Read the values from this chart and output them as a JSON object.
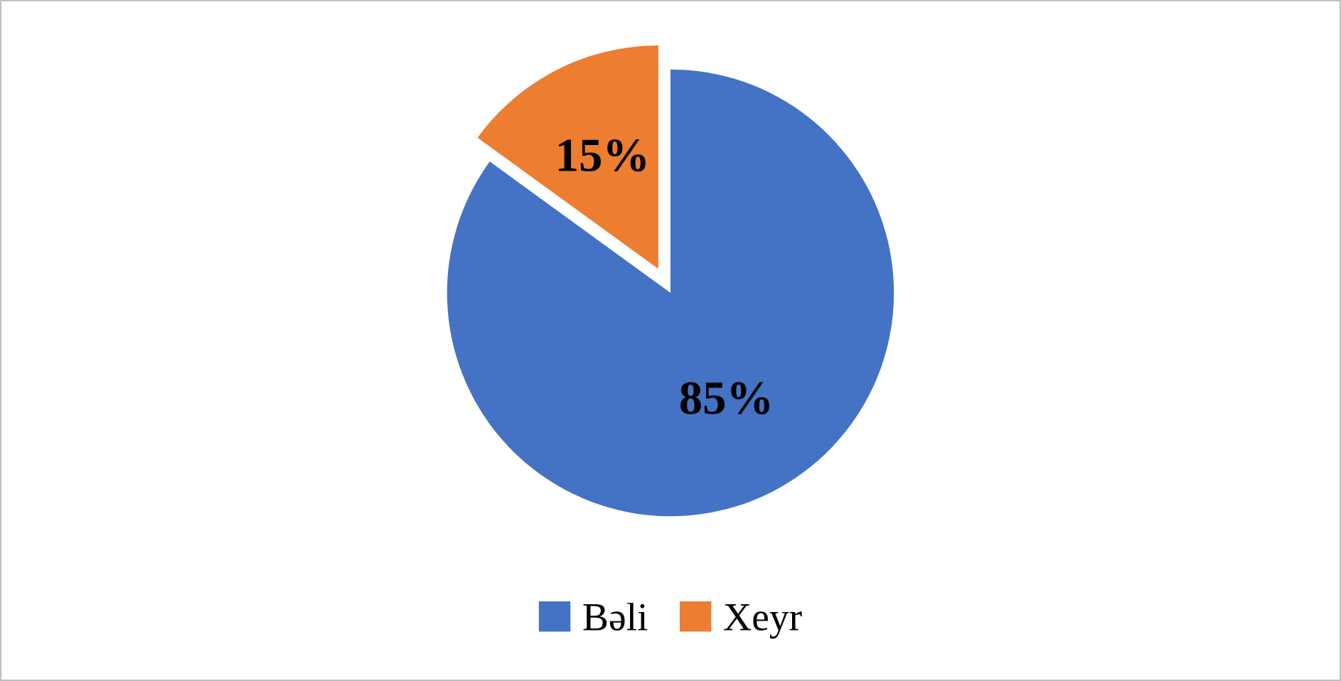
{
  "chart_data": {
    "type": "pie",
    "categories": [
      "Bəli",
      "Xeyr"
    ],
    "values": [
      85,
      15
    ],
    "colors": [
      "#4472c4",
      "#ed7d31"
    ],
    "value_labels": [
      "85%",
      "15%"
    ],
    "legend": "bottom"
  }
}
